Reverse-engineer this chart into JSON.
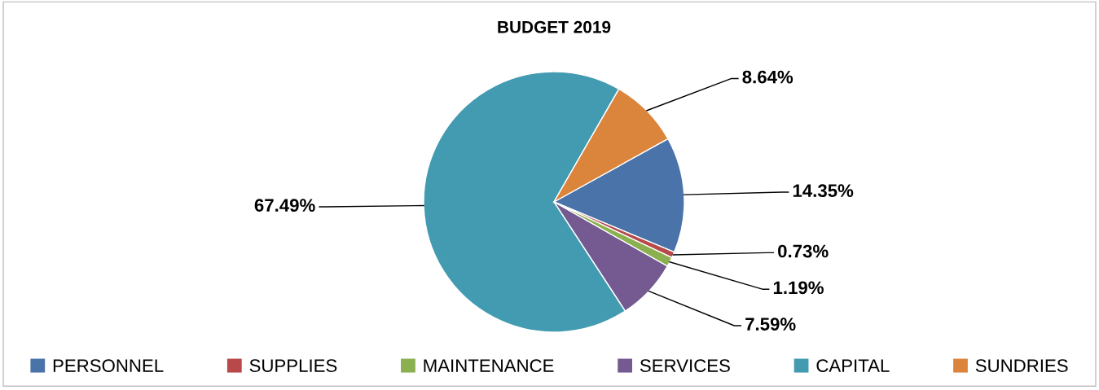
{
  "chart_data": {
    "type": "pie",
    "title": "BUDGET 2019",
    "categories": [
      "PERSONNEL",
      "SUPPLIES",
      "MAINTENANCE",
      "SERVICES",
      "CAPITAL",
      "SUNDRIES"
    ],
    "values": [
      14.35,
      0.73,
      1.19,
      7.59,
      67.49,
      8.64
    ],
    "value_labels": [
      "14.35%",
      "0.73%",
      "1.19%",
      "7.59%",
      "67.49%",
      "8.64%"
    ],
    "colors": [
      "#4a73a9",
      "#b8494a",
      "#8bb04f",
      "#745a91",
      "#439bb1",
      "#db843c"
    ],
    "legend": "bottom"
  }
}
